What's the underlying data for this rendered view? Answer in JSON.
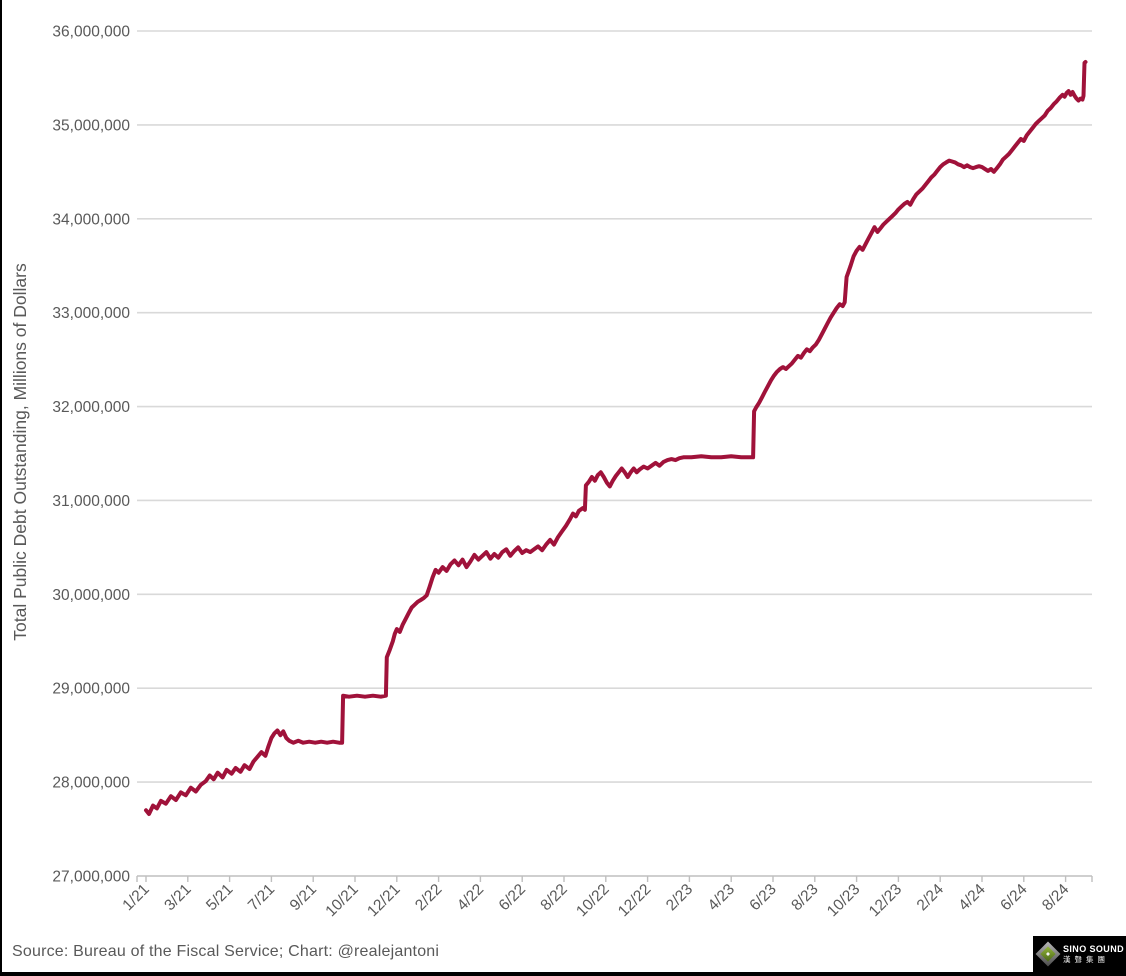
{
  "footer": {
    "source": "Source: Bureau of the Fiscal Service; Chart: @realejantoni",
    "logo": {
      "brand": "SINO SOUND",
      "brand_cn": "漢聲集團"
    }
  },
  "chart_data": {
    "type": "line",
    "title": "",
    "xlabel": "",
    "ylabel": "Total Public Debt Outstanding, Millions of Dollars",
    "y_unit_note": "axis labels are millions of USD; point values below are in axis-millions divided by 1,000,000 (i.e. trillions USD)",
    "x_unit_note": "x is business days since 1/1/2021; one x-axis tick every 42 business days",
    "ylim": [
      27,
      36
    ],
    "grid": "horizontal-only",
    "legend": "none",
    "colors": {
      "line": "#A0123A",
      "grid": "#D9D9D9",
      "axis": "#BFBFBF",
      "tick": "#BFBFBF",
      "label": "#595959"
    },
    "y_ticks": [
      {
        "value": 27,
        "label": "27,000,000"
      },
      {
        "value": 28,
        "label": "28,000,000"
      },
      {
        "value": 29,
        "label": "29,000,000"
      },
      {
        "value": 30,
        "label": "30,000,000"
      },
      {
        "value": 31,
        "label": "31,000,000"
      },
      {
        "value": 32,
        "label": "32,000,000"
      },
      {
        "value": 33,
        "label": "33,000,000"
      },
      {
        "value": 34,
        "label": "34,000,000"
      },
      {
        "value": 35,
        "label": "35,000,000"
      },
      {
        "value": 36,
        "label": "36,000,000"
      }
    ],
    "x_ticks": [
      {
        "t": 0,
        "label": "1/21"
      },
      {
        "t": 42,
        "label": "3/21"
      },
      {
        "t": 84,
        "label": "5/21"
      },
      {
        "t": 126,
        "label": "7/21"
      },
      {
        "t": 168,
        "label": "9/21"
      },
      {
        "t": 210,
        "label": "10/21"
      },
      {
        "t": 252,
        "label": "12/21"
      },
      {
        "t": 294,
        "label": "2/22"
      },
      {
        "t": 336,
        "label": "4/22"
      },
      {
        "t": 378,
        "label": "6/22"
      },
      {
        "t": 420,
        "label": "8/22"
      },
      {
        "t": 462,
        "label": "10/22"
      },
      {
        "t": 504,
        "label": "12/22"
      },
      {
        "t": 546,
        "label": "2/23"
      },
      {
        "t": 588,
        "label": "4/23"
      },
      {
        "t": 630,
        "label": "6/23"
      },
      {
        "t": 672,
        "label": "8/23"
      },
      {
        "t": 714,
        "label": "10/23"
      },
      {
        "t": 756,
        "label": "12/23"
      },
      {
        "t": 798,
        "label": "2/24"
      },
      {
        "t": 840,
        "label": "4/24"
      },
      {
        "t": 882,
        "label": "6/24"
      },
      {
        "t": 924,
        "label": "8/24"
      }
    ],
    "series": [
      {
        "name": "Total Public Debt Outstanding",
        "points": [
          [
            0,
            27.7
          ],
          [
            3,
            27.66
          ],
          [
            7,
            27.75
          ],
          [
            11,
            27.72
          ],
          [
            15,
            27.8
          ],
          [
            20,
            27.77
          ],
          [
            25,
            27.85
          ],
          [
            30,
            27.81
          ],
          [
            35,
            27.89
          ],
          [
            40,
            27.86
          ],
          [
            45,
            27.94
          ],
          [
            50,
            27.9
          ],
          [
            55,
            27.97
          ],
          [
            60,
            28.01
          ],
          [
            64,
            28.07
          ],
          [
            68,
            28.03
          ],
          [
            72,
            28.1
          ],
          [
            77,
            28.05
          ],
          [
            81,
            28.13
          ],
          [
            86,
            28.09
          ],
          [
            90,
            28.15
          ],
          [
            95,
            28.11
          ],
          [
            99,
            28.18
          ],
          [
            104,
            28.14
          ],
          [
            108,
            28.22
          ],
          [
            112,
            28.27
          ],
          [
            116,
            28.32
          ],
          [
            120,
            28.28
          ],
          [
            123,
            28.38
          ],
          [
            126,
            28.47
          ],
          [
            129,
            28.52
          ],
          [
            132,
            28.55
          ],
          [
            135,
            28.5
          ],
          [
            138,
            28.54
          ],
          [
            141,
            28.47
          ],
          [
            144,
            28.44
          ],
          [
            148,
            28.42
          ],
          [
            153,
            28.44
          ],
          [
            158,
            28.42
          ],
          [
            164,
            28.43
          ],
          [
            170,
            28.42
          ],
          [
            176,
            28.43
          ],
          [
            182,
            28.42
          ],
          [
            188,
            28.43
          ],
          [
            194,
            28.42
          ],
          [
            197,
            28.42
          ],
          [
            198,
            28.92
          ],
          [
            204,
            28.91
          ],
          [
            212,
            28.92
          ],
          [
            220,
            28.91
          ],
          [
            228,
            28.92
          ],
          [
            236,
            28.91
          ],
          [
            241,
            28.92
          ],
          [
            242,
            29.33
          ],
          [
            245,
            29.41
          ],
          [
            248,
            29.5
          ],
          [
            250,
            29.58
          ],
          [
            252,
            29.63
          ],
          [
            255,
            29.6
          ],
          [
            258,
            29.68
          ],
          [
            261,
            29.74
          ],
          [
            264,
            29.8
          ],
          [
            267,
            29.86
          ],
          [
            270,
            29.89
          ],
          [
            273,
            29.92
          ],
          [
            276,
            29.94
          ],
          [
            279,
            29.96
          ],
          [
            282,
            29.99
          ],
          [
            285,
            30.08
          ],
          [
            288,
            30.18
          ],
          [
            291,
            30.26
          ],
          [
            294,
            30.23
          ],
          [
            298,
            30.29
          ],
          [
            302,
            30.25
          ],
          [
            306,
            30.32
          ],
          [
            310,
            30.36
          ],
          [
            314,
            30.31
          ],
          [
            318,
            30.37
          ],
          [
            322,
            30.29
          ],
          [
            326,
            30.35
          ],
          [
            330,
            30.42
          ],
          [
            334,
            30.37
          ],
          [
            338,
            30.41
          ],
          [
            342,
            30.45
          ],
          [
            346,
            30.38
          ],
          [
            350,
            30.43
          ],
          [
            354,
            30.39
          ],
          [
            358,
            30.45
          ],
          [
            362,
            30.48
          ],
          [
            366,
            30.41
          ],
          [
            370,
            30.46
          ],
          [
            374,
            30.5
          ],
          [
            378,
            30.44
          ],
          [
            382,
            30.47
          ],
          [
            386,
            30.45
          ],
          [
            390,
            30.48
          ],
          [
            394,
            30.51
          ],
          [
            398,
            30.47
          ],
          [
            402,
            30.53
          ],
          [
            406,
            30.58
          ],
          [
            410,
            30.53
          ],
          [
            414,
            30.61
          ],
          [
            418,
            30.67
          ],
          [
            422,
            30.73
          ],
          [
            426,
            30.8
          ],
          [
            429,
            30.86
          ],
          [
            432,
            30.83
          ],
          [
            435,
            30.89
          ],
          [
            439,
            30.92
          ],
          [
            441,
            30.9
          ],
          [
            442,
            31.16
          ],
          [
            445,
            31.2
          ],
          [
            448,
            31.25
          ],
          [
            451,
            31.21
          ],
          [
            454,
            31.27
          ],
          [
            457,
            31.3
          ],
          [
            460,
            31.25
          ],
          [
            463,
            31.19
          ],
          [
            466,
            31.15
          ],
          [
            469,
            31.21
          ],
          [
            472,
            31.26
          ],
          [
            475,
            31.3
          ],
          [
            478,
            31.34
          ],
          [
            481,
            31.3
          ],
          [
            484,
            31.25
          ],
          [
            487,
            31.3
          ],
          [
            490,
            31.34
          ],
          [
            493,
            31.3
          ],
          [
            496,
            31.33
          ],
          [
            500,
            31.36
          ],
          [
            504,
            31.34
          ],
          [
            508,
            31.37
          ],
          [
            512,
            31.4
          ],
          [
            516,
            31.37
          ],
          [
            520,
            31.41
          ],
          [
            524,
            31.43
          ],
          [
            528,
            31.44
          ],
          [
            532,
            31.43
          ],
          [
            536,
            31.45
          ],
          [
            540,
            31.46
          ],
          [
            548,
            31.46
          ],
          [
            558,
            31.47
          ],
          [
            568,
            31.46
          ],
          [
            578,
            31.46
          ],
          [
            588,
            31.47
          ],
          [
            598,
            31.46
          ],
          [
            606,
            31.46
          ],
          [
            610,
            31.46
          ],
          [
            611,
            31.95
          ],
          [
            613,
            31.99
          ],
          [
            616,
            32.04
          ],
          [
            619,
            32.1
          ],
          [
            622,
            32.16
          ],
          [
            625,
            32.22
          ],
          [
            628,
            32.28
          ],
          [
            631,
            32.33
          ],
          [
            634,
            32.37
          ],
          [
            637,
            32.4
          ],
          [
            640,
            32.42
          ],
          [
            643,
            32.4
          ],
          [
            646,
            32.43
          ],
          [
            649,
            32.46
          ],
          [
            652,
            32.5
          ],
          [
            655,
            32.54
          ],
          [
            658,
            32.52
          ],
          [
            661,
            32.57
          ],
          [
            664,
            32.61
          ],
          [
            667,
            32.59
          ],
          [
            670,
            32.63
          ],
          [
            673,
            32.66
          ],
          [
            676,
            32.71
          ],
          [
            679,
            32.77
          ],
          [
            682,
            32.83
          ],
          [
            685,
            32.89
          ],
          [
            688,
            32.95
          ],
          [
            691,
            33.0
          ],
          [
            694,
            33.05
          ],
          [
            697,
            33.09
          ],
          [
            700,
            33.07
          ],
          [
            702,
            33.11
          ],
          [
            704,
            33.38
          ],
          [
            706,
            33.44
          ],
          [
            708,
            33.5
          ],
          [
            711,
            33.6
          ],
          [
            714,
            33.66
          ],
          [
            717,
            33.7
          ],
          [
            720,
            33.67
          ],
          [
            723,
            33.73
          ],
          [
            726,
            33.79
          ],
          [
            729,
            33.85
          ],
          [
            732,
            33.91
          ],
          [
            735,
            33.86
          ],
          [
            738,
            33.9
          ],
          [
            741,
            33.94
          ],
          [
            744,
            33.97
          ],
          [
            747,
            34.0
          ],
          [
            750,
            34.03
          ],
          [
            753,
            34.06
          ],
          [
            756,
            34.1
          ],
          [
            759,
            34.13
          ],
          [
            762,
            34.16
          ],
          [
            765,
            34.18
          ],
          [
            768,
            34.15
          ],
          [
            771,
            34.21
          ],
          [
            774,
            34.26
          ],
          [
            777,
            34.29
          ],
          [
            780,
            34.32
          ],
          [
            783,
            34.36
          ],
          [
            786,
            34.4
          ],
          [
            789,
            34.44
          ],
          [
            792,
            34.47
          ],
          [
            795,
            34.51
          ],
          [
            798,
            34.55
          ],
          [
            801,
            34.58
          ],
          [
            804,
            34.6
          ],
          [
            807,
            34.62
          ],
          [
            810,
            34.61
          ],
          [
            813,
            34.6
          ],
          [
            816,
            34.58
          ],
          [
            819,
            34.57
          ],
          [
            822,
            34.55
          ],
          [
            825,
            34.57
          ],
          [
            828,
            34.55
          ],
          [
            831,
            34.54
          ],
          [
            834,
            34.55
          ],
          [
            837,
            34.56
          ],
          [
            840,
            34.55
          ],
          [
            843,
            34.53
          ],
          [
            846,
            34.51
          ],
          [
            849,
            34.53
          ],
          [
            852,
            34.5
          ],
          [
            855,
            34.54
          ],
          [
            858,
            34.58
          ],
          [
            861,
            34.63
          ],
          [
            864,
            34.66
          ],
          [
            867,
            34.69
          ],
          [
            870,
            34.73
          ],
          [
            873,
            34.77
          ],
          [
            876,
            34.81
          ],
          [
            879,
            34.85
          ],
          [
            882,
            34.83
          ],
          [
            885,
            34.89
          ],
          [
            888,
            34.93
          ],
          [
            891,
            34.97
          ],
          [
            894,
            35.01
          ],
          [
            897,
            35.04
          ],
          [
            900,
            35.07
          ],
          [
            903,
            35.1
          ],
          [
            906,
            35.15
          ],
          [
            909,
            35.18
          ],
          [
            912,
            35.22
          ],
          [
            915,
            35.25
          ],
          [
            918,
            35.29
          ],
          [
            921,
            35.32
          ],
          [
            923,
            35.3
          ],
          [
            925,
            35.34
          ],
          [
            927,
            35.36
          ],
          [
            929,
            35.32
          ],
          [
            931,
            35.35
          ],
          [
            933,
            35.31
          ],
          [
            935,
            35.28
          ],
          [
            937,
            35.26
          ],
          [
            939,
            35.28
          ],
          [
            941,
            35.27
          ],
          [
            942,
            35.31
          ],
          [
            943,
            35.66
          ],
          [
            944,
            35.67
          ]
        ]
      }
    ]
  }
}
